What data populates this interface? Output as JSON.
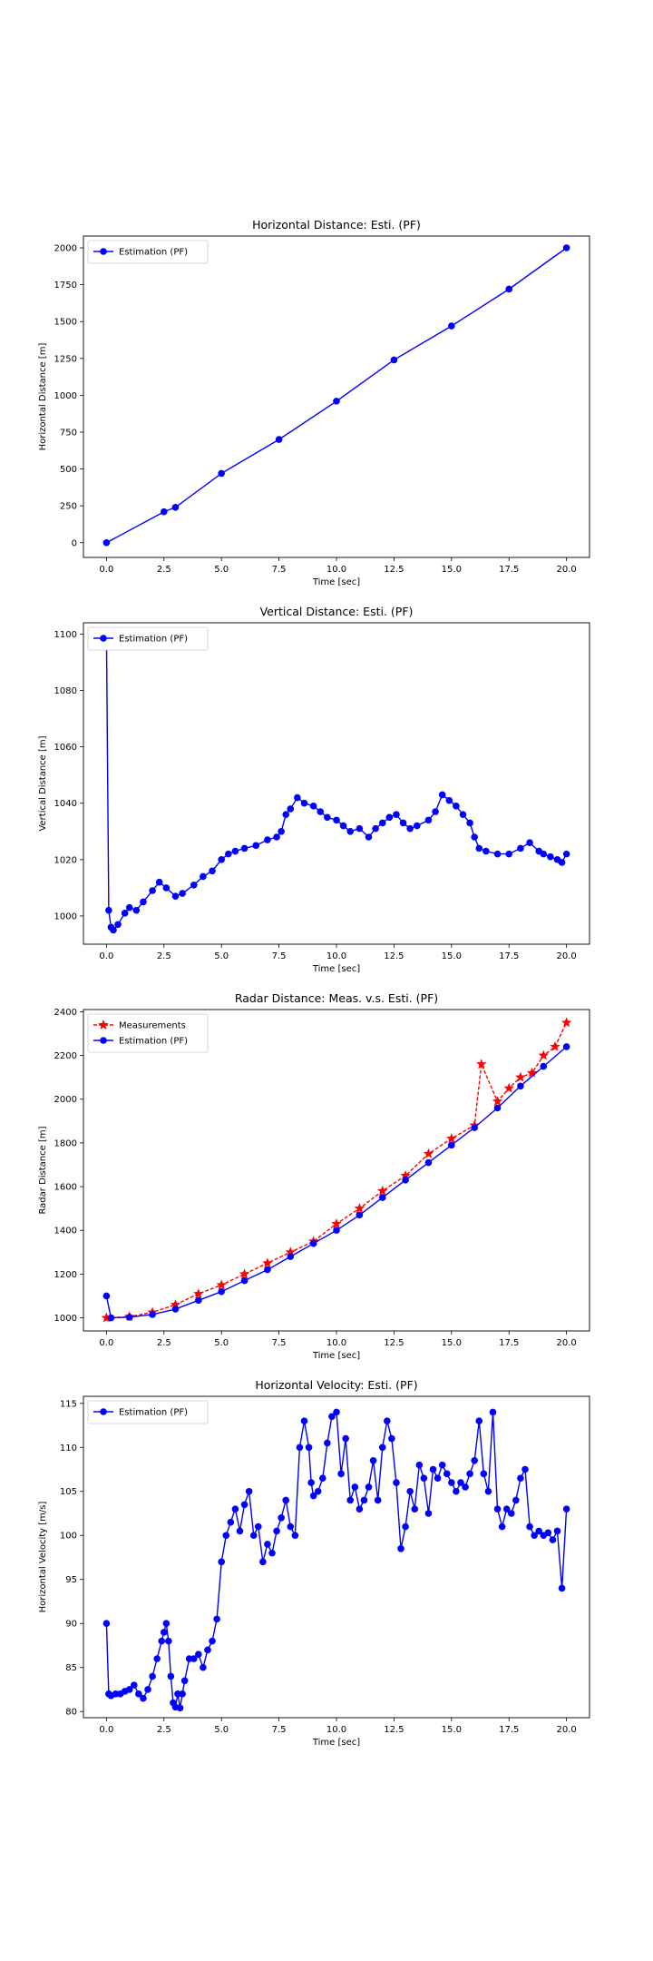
{
  "chart_data": [
    {
      "type": "line",
      "title": "Horizontal Distance: Esti. (PF)",
      "xlabel": "Time [sec]",
      "ylabel": "Horizontal Distance [m]",
      "xlim": [
        -1.0,
        21.0
      ],
      "ylim": [
        -100,
        2080
      ],
      "xticks": [
        0.0,
        2.5,
        5.0,
        7.5,
        10.0,
        12.5,
        15.0,
        17.5,
        20.0
      ],
      "xtick_labels": [
        "0.0",
        "2.5",
        "5.0",
        "7.5",
        "10.0",
        "12.5",
        "15.0",
        "17.5",
        "20.0"
      ],
      "yticks": [
        0,
        250,
        500,
        750,
        1000,
        1250,
        1500,
        1750,
        2000
      ],
      "ytick_labels": [
        "0",
        "250",
        "500",
        "750",
        "1000",
        "1250",
        "1500",
        "1750",
        "2000"
      ],
      "legend_position": "top-left",
      "series": [
        {
          "name": "Estimation (PF)",
          "color": "#0000ff",
          "marker": "circle",
          "x": [
            0.0,
            2.5,
            3.0,
            5.0,
            7.5,
            10.0,
            12.5,
            15.0,
            17.5,
            20.0
          ],
          "y": [
            0,
            210,
            240,
            470,
            700,
            960,
            1240,
            1470,
            1720,
            2000
          ]
        }
      ]
    },
    {
      "type": "line",
      "title": "Vertical Distance: Esti. (PF)",
      "xlabel": "Time [sec]",
      "ylabel": "Vertical Distance [m]",
      "xlim": [
        -1.0,
        21.0
      ],
      "ylim": [
        990,
        1104
      ],
      "xticks": [
        0.0,
        2.5,
        5.0,
        7.5,
        10.0,
        12.5,
        15.0,
        17.5,
        20.0
      ],
      "xtick_labels": [
        "0.0",
        "2.5",
        "5.0",
        "7.5",
        "10.0",
        "12.5",
        "15.0",
        "17.5",
        "20.0"
      ],
      "yticks": [
        1000,
        1020,
        1040,
        1060,
        1080,
        1100
      ],
      "ytick_labels": [
        "1000",
        "1020",
        "1040",
        "1060",
        "1080",
        "1100"
      ],
      "legend_position": "top-left",
      "series": [
        {
          "name": "Estimation (PF)",
          "color": "#0000ff",
          "marker": "circle",
          "x": [
            0.0,
            0.1,
            0.2,
            0.3,
            0.5,
            0.8,
            1.0,
            1.3,
            1.6,
            2.0,
            2.3,
            2.6,
            3.0,
            3.3,
            3.8,
            4.2,
            4.6,
            5.0,
            5.3,
            5.6,
            6.0,
            6.5,
            7.0,
            7.4,
            7.6,
            7.8,
            8.0,
            8.3,
            8.6,
            9.0,
            9.3,
            9.6,
            10.0,
            10.3,
            10.6,
            11.0,
            11.4,
            11.7,
            12.0,
            12.3,
            12.6,
            12.9,
            13.2,
            13.5,
            14.0,
            14.3,
            14.6,
            14.9,
            15.2,
            15.5,
            15.8,
            16.0,
            16.2,
            16.5,
            17.0,
            17.5,
            18.0,
            18.4,
            18.8,
            19.0,
            19.3,
            19.6,
            19.8,
            20.0
          ],
          "y": [
            1100,
            1002,
            996,
            995,
            997,
            1001,
            1003,
            1002,
            1005,
            1009,
            1012,
            1010,
            1007,
            1008,
            1011,
            1014,
            1016,
            1020,
            1022,
            1023,
            1024,
            1025,
            1027,
            1028,
            1030,
            1036,
            1038,
            1042,
            1040,
            1039,
            1037,
            1035,
            1034,
            1032,
            1030,
            1031,
            1028,
            1031,
            1033,
            1035,
            1036,
            1033,
            1031,
            1032,
            1034,
            1037,
            1043,
            1041,
            1039,
            1036,
            1033,
            1028,
            1024,
            1023,
            1022,
            1022,
            1024,
            1026,
            1023,
            1022,
            1021,
            1020,
            1019,
            1022
          ]
        }
      ]
    },
    {
      "type": "line",
      "title": "Radar Distance: Meas. v.s. Esti. (PF)",
      "xlabel": "Time [sec]",
      "ylabel": "Radar Distance [m]",
      "xlim": [
        -1.0,
        21.0
      ],
      "ylim": [
        940,
        2410
      ],
      "xticks": [
        0.0,
        2.5,
        5.0,
        7.5,
        10.0,
        12.5,
        15.0,
        17.5,
        20.0
      ],
      "xtick_labels": [
        "0.0",
        "2.5",
        "5.0",
        "7.5",
        "10.0",
        "12.5",
        "15.0",
        "17.5",
        "20.0"
      ],
      "yticks": [
        1000,
        1200,
        1400,
        1600,
        1800,
        2000,
        2200,
        2400
      ],
      "ytick_labels": [
        "1000",
        "1200",
        "1400",
        "1600",
        "1800",
        "2000",
        "2200",
        "2400"
      ],
      "legend_position": "top-left",
      "series": [
        {
          "name": "Measurements",
          "color": "#ff0000",
          "marker": "star",
          "x": [
            0.0,
            1.0,
            2.0,
            3.0,
            4.0,
            5.0,
            6.0,
            7.0,
            8.0,
            9.0,
            10.0,
            11.0,
            12.0,
            13.0,
            14.0,
            15.0,
            16.0,
            16.3,
            17.0,
            17.5,
            18.0,
            18.5,
            19.0,
            19.5,
            20.0
          ],
          "y": [
            1000,
            1005,
            1025,
            1060,
            1110,
            1150,
            1200,
            1250,
            1300,
            1350,
            1430,
            1500,
            1580,
            1650,
            1750,
            1820,
            1880,
            2160,
            1990,
            2050,
            2100,
            2120,
            2200,
            2240,
            2350
          ]
        },
        {
          "name": "Estimation (PF)",
          "color": "#0000ff",
          "marker": "circle",
          "x": [
            0.0,
            0.2,
            1.0,
            2.0,
            3.0,
            4.0,
            5.0,
            6.0,
            7.0,
            8.0,
            9.0,
            10.0,
            11.0,
            12.0,
            13.0,
            14.0,
            15.0,
            16.0,
            17.0,
            18.0,
            19.0,
            20.0
          ],
          "y": [
            1100,
            1000,
            1003,
            1015,
            1040,
            1080,
            1120,
            1170,
            1220,
            1280,
            1340,
            1400,
            1470,
            1550,
            1630,
            1710,
            1790,
            1870,
            1960,
            2060,
            2150,
            2240
          ]
        }
      ]
    },
    {
      "type": "line",
      "title": "Horizontal Velocity: Esti. (PF)",
      "xlabel": "Time [sec]",
      "ylabel": "Horizontal Velocity [m/s]",
      "xlim": [
        -1.0,
        21.0
      ],
      "ylim": [
        79.3,
        115.8
      ],
      "xticks": [
        0.0,
        2.5,
        5.0,
        7.5,
        10.0,
        12.5,
        15.0,
        17.5,
        20.0
      ],
      "xtick_labels": [
        "0.0",
        "2.5",
        "5.0",
        "7.5",
        "10.0",
        "12.5",
        "15.0",
        "17.5",
        "20.0"
      ],
      "yticks": [
        80,
        85,
        90,
        95,
        100,
        105,
        110,
        115
      ],
      "ytick_labels": [
        "80",
        "85",
        "90",
        "95",
        "100",
        "105",
        "110",
        "115"
      ],
      "legend_position": "top-left",
      "series": [
        {
          "name": "Estimation (PF)",
          "color": "#0000ff",
          "marker": "circle",
          "x": [
            0.0,
            0.1,
            0.2,
            0.4,
            0.6,
            0.8,
            1.0,
            1.2,
            1.4,
            1.6,
            1.8,
            2.0,
            2.2,
            2.4,
            2.5,
            2.6,
            2.7,
            2.8,
            2.9,
            3.0,
            3.1,
            3.2,
            3.3,
            3.4,
            3.6,
            3.8,
            4.0,
            4.2,
            4.4,
            4.6,
            4.8,
            5.0,
            5.2,
            5.4,
            5.6,
            5.8,
            6.0,
            6.2,
            6.4,
            6.6,
            6.8,
            7.0,
            7.2,
            7.4,
            7.6,
            7.8,
            8.0,
            8.2,
            8.4,
            8.6,
            8.8,
            8.9,
            9.0,
            9.2,
            9.4,
            9.6,
            9.8,
            10.0,
            10.2,
            10.4,
            10.6,
            10.8,
            11.0,
            11.2,
            11.4,
            11.6,
            11.8,
            12.0,
            12.2,
            12.4,
            12.6,
            12.8,
            13.0,
            13.2,
            13.4,
            13.6,
            13.8,
            14.0,
            14.2,
            14.4,
            14.6,
            14.8,
            15.0,
            15.2,
            15.4,
            15.6,
            15.8,
            16.0,
            16.2,
            16.4,
            16.6,
            16.8,
            17.0,
            17.2,
            17.4,
            17.6,
            17.8,
            18.0,
            18.2,
            18.4,
            18.6,
            18.8,
            19.0,
            19.2,
            19.4,
            19.6,
            19.8,
            20.0
          ],
          "y": [
            90.0,
            82.0,
            81.8,
            82.0,
            82.0,
            82.3,
            82.5,
            83.0,
            82.0,
            81.5,
            82.5,
            84.0,
            86.0,
            88.0,
            89.0,
            90.0,
            88.0,
            84.0,
            81.0,
            80.5,
            82.0,
            80.4,
            82.0,
            83.5,
            86.0,
            86.0,
            86.5,
            85.0,
            87.0,
            88.0,
            90.5,
            97.0,
            100.0,
            101.5,
            103.0,
            100.5,
            103.5,
            105.0,
            100.0,
            101.0,
            97.0,
            99.0,
            98.0,
            100.5,
            102.0,
            104.0,
            101.0,
            100.0,
            110.0,
            113.0,
            110.0,
            106.0,
            104.5,
            105.0,
            106.5,
            110.5,
            113.5,
            114.0,
            107.0,
            111.0,
            104.0,
            105.5,
            103.0,
            104.0,
            105.5,
            108.5,
            104.0,
            110.0,
            113.0,
            111.0,
            106.0,
            98.5,
            101.0,
            105.0,
            103.0,
            108.0,
            106.5,
            102.5,
            107.5,
            106.5,
            108.0,
            107.0,
            106.0,
            105.0,
            106.0,
            105.5,
            107.0,
            108.5,
            113.0,
            107.0,
            105.0,
            114.0,
            103.0,
            101.0,
            103.0,
            102.5,
            104.0,
            106.5,
            107.5,
            101.0,
            100.0,
            100.5,
            100.0,
            100.3,
            99.5,
            100.5,
            94.0,
            103.0
          ]
        }
      ]
    }
  ]
}
